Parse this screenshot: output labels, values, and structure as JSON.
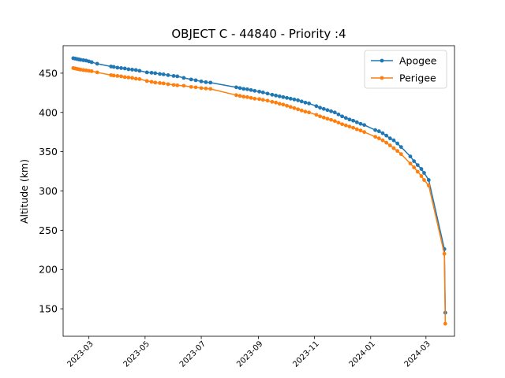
{
  "chart_data": {
    "type": "line",
    "title": "OBJECT C - 44840 - Priority :4",
    "xlabel": "",
    "ylabel": "Altitude (km)",
    "x_type": "date",
    "xlim": [
      "2023-02-01",
      "2024-04-01"
    ],
    "ylim": [
      115,
      485
    ],
    "grid": false,
    "legend_position": "top-right",
    "x_ticks": [
      "2023-03",
      "2023-05",
      "2023-07",
      "2023-09",
      "2023-11",
      "2024-01",
      "2024-03"
    ],
    "y_ticks": [
      150,
      200,
      250,
      300,
      350,
      400,
      450
    ],
    "series": [
      {
        "name": "Apogee",
        "color": "#1f77b4",
        "points": [
          [
            "2023-02-12",
            469
          ],
          [
            "2023-02-14",
            468.5
          ],
          [
            "2023-02-16",
            468
          ],
          [
            "2023-02-18",
            467.5
          ],
          [
            "2023-02-20",
            467
          ],
          [
            "2023-02-23",
            466.5
          ],
          [
            "2023-02-26",
            466
          ],
          [
            "2023-03-01",
            465
          ],
          [
            "2023-03-04",
            464
          ],
          [
            "2023-03-10",
            462
          ],
          [
            "2023-03-25",
            458.5
          ],
          [
            "2023-03-28",
            458
          ],
          [
            "2023-04-01",
            457
          ],
          [
            "2023-04-05",
            456.5
          ],
          [
            "2023-04-09",
            456
          ],
          [
            "2023-04-13",
            455
          ],
          [
            "2023-04-17",
            454.5
          ],
          [
            "2023-04-21",
            454
          ],
          [
            "2023-04-25",
            453
          ],
          [
            "2023-05-03",
            451
          ],
          [
            "2023-05-08",
            450.5
          ],
          [
            "2023-05-12",
            450
          ],
          [
            "2023-05-17",
            449
          ],
          [
            "2023-05-21",
            448.5
          ],
          [
            "2023-05-26",
            447.5
          ],
          [
            "2023-06-01",
            446.5
          ],
          [
            "2023-06-05",
            446
          ],
          [
            "2023-06-12",
            444
          ],
          [
            "2023-06-20",
            442
          ],
          [
            "2023-06-25",
            441
          ],
          [
            "2023-07-01",
            439.5
          ],
          [
            "2023-07-06",
            438.5
          ],
          [
            "2023-07-11",
            438
          ],
          [
            "2023-08-08",
            432
          ],
          [
            "2023-08-12",
            431
          ],
          [
            "2023-08-16",
            430
          ],
          [
            "2023-08-20",
            429.5
          ],
          [
            "2023-08-24",
            428.5
          ],
          [
            "2023-08-28",
            427.5
          ],
          [
            "2023-09-02",
            426.5
          ],
          [
            "2023-09-06",
            425.5
          ],
          [
            "2023-09-11",
            424
          ],
          [
            "2023-09-16",
            422.5
          ],
          [
            "2023-09-20",
            421.5
          ],
          [
            "2023-09-24",
            420.5
          ],
          [
            "2023-09-28",
            419.5
          ],
          [
            "2023-10-02",
            418.5
          ],
          [
            "2023-10-06",
            417.5
          ],
          [
            "2023-10-10",
            416.5
          ],
          [
            "2023-10-14",
            415.5
          ],
          [
            "2023-10-18",
            414
          ],
          [
            "2023-10-22",
            412.5
          ],
          [
            "2023-10-26",
            411.5
          ],
          [
            "2023-11-03",
            408
          ],
          [
            "2023-11-07",
            406
          ],
          [
            "2023-11-11",
            404.5
          ],
          [
            "2023-11-15",
            403
          ],
          [
            "2023-11-19",
            401.5
          ],
          [
            "2023-11-23",
            400
          ],
          [
            "2023-11-27",
            397.5
          ],
          [
            "2023-12-01",
            395
          ],
          [
            "2023-12-05",
            393
          ],
          [
            "2023-12-09",
            391
          ],
          [
            "2023-12-13",
            389.5
          ],
          [
            "2023-12-17",
            387.5
          ],
          [
            "2023-12-21",
            385.5
          ],
          [
            "2023-12-25",
            384
          ],
          [
            "2024-01-06",
            377.5
          ],
          [
            "2024-01-10",
            376
          ],
          [
            "2024-01-14",
            373.5
          ],
          [
            "2024-01-18",
            370.5
          ],
          [
            "2024-01-22",
            367
          ],
          [
            "2024-01-26",
            364.5
          ],
          [
            "2024-01-30",
            360.5
          ],
          [
            "2024-02-03",
            356
          ],
          [
            "2024-02-13",
            344
          ],
          [
            "2024-02-17",
            338
          ],
          [
            "2024-02-21",
            333
          ],
          [
            "2024-02-25",
            328
          ],
          [
            "2024-02-28",
            323
          ],
          [
            "2024-03-04",
            314
          ],
          [
            "2024-03-21",
            226
          ],
          [
            "2024-03-22",
            145
          ]
        ]
      },
      {
        "name": "Perigee",
        "color": "#ff7f0e",
        "points": [
          [
            "2023-02-12",
            456.5
          ],
          [
            "2023-02-14",
            456
          ],
          [
            "2023-02-16",
            455.5
          ],
          [
            "2023-02-18",
            455
          ],
          [
            "2023-02-20",
            454.5
          ],
          [
            "2023-02-23",
            454
          ],
          [
            "2023-02-26",
            453.5
          ],
          [
            "2023-03-01",
            453
          ],
          [
            "2023-03-04",
            452.5
          ],
          [
            "2023-03-10",
            451
          ],
          [
            "2023-03-25",
            447.5
          ],
          [
            "2023-03-28",
            447
          ],
          [
            "2023-04-01",
            446.5
          ],
          [
            "2023-04-05",
            446
          ],
          [
            "2023-04-09",
            445
          ],
          [
            "2023-04-13",
            444.5
          ],
          [
            "2023-04-17",
            444
          ],
          [
            "2023-04-21",
            443
          ],
          [
            "2023-04-25",
            442.5
          ],
          [
            "2023-05-03",
            440
          ],
          [
            "2023-05-08",
            439
          ],
          [
            "2023-05-12",
            438
          ],
          [
            "2023-05-17",
            437.5
          ],
          [
            "2023-05-21",
            437
          ],
          [
            "2023-05-26",
            436
          ],
          [
            "2023-06-01",
            435
          ],
          [
            "2023-06-05",
            434.5
          ],
          [
            "2023-06-12",
            434
          ],
          [
            "2023-06-20",
            432.5
          ],
          [
            "2023-06-25",
            432
          ],
          [
            "2023-07-01",
            431
          ],
          [
            "2023-07-06",
            430.5
          ],
          [
            "2023-07-11",
            430
          ],
          [
            "2023-08-08",
            422
          ],
          [
            "2023-08-12",
            421
          ],
          [
            "2023-08-16",
            420
          ],
          [
            "2023-08-20",
            419.5
          ],
          [
            "2023-08-24",
            418.5
          ],
          [
            "2023-08-28",
            417.5
          ],
          [
            "2023-09-02",
            417
          ],
          [
            "2023-09-06",
            416
          ],
          [
            "2023-09-11",
            415
          ],
          [
            "2023-09-16",
            413.5
          ],
          [
            "2023-09-20",
            412.5
          ],
          [
            "2023-09-24",
            411
          ],
          [
            "2023-09-28",
            410
          ],
          [
            "2023-10-02",
            408.5
          ],
          [
            "2023-10-06",
            407
          ],
          [
            "2023-10-10",
            405.5
          ],
          [
            "2023-10-14",
            404
          ],
          [
            "2023-10-18",
            402.5
          ],
          [
            "2023-10-22",
            401
          ],
          [
            "2023-10-26",
            400
          ],
          [
            "2023-11-03",
            397
          ],
          [
            "2023-11-07",
            395
          ],
          [
            "2023-11-11",
            393.5
          ],
          [
            "2023-11-15",
            392
          ],
          [
            "2023-11-19",
            390.5
          ],
          [
            "2023-11-23",
            389
          ],
          [
            "2023-11-27",
            387
          ],
          [
            "2023-12-01",
            385
          ],
          [
            "2023-12-05",
            383.5
          ],
          [
            "2023-12-09",
            382
          ],
          [
            "2023-12-13",
            380.5
          ],
          [
            "2023-12-17",
            378.5
          ],
          [
            "2023-12-21",
            377
          ],
          [
            "2023-12-25",
            375
          ],
          [
            "2024-01-06",
            369
          ],
          [
            "2024-01-10",
            367
          ],
          [
            "2024-01-14",
            364.5
          ],
          [
            "2024-01-18",
            361.5
          ],
          [
            "2024-01-22",
            358
          ],
          [
            "2024-01-26",
            354.5
          ],
          [
            "2024-01-30",
            351
          ],
          [
            "2024-02-03",
            347
          ],
          [
            "2024-02-13",
            335
          ],
          [
            "2024-02-17",
            330
          ],
          [
            "2024-02-21",
            324.5
          ],
          [
            "2024-02-25",
            319
          ],
          [
            "2024-02-28",
            314
          ],
          [
            "2024-03-04",
            307
          ],
          [
            "2024-03-21",
            220
          ],
          [
            "2024-03-22",
            131
          ]
        ]
      }
    ]
  }
}
